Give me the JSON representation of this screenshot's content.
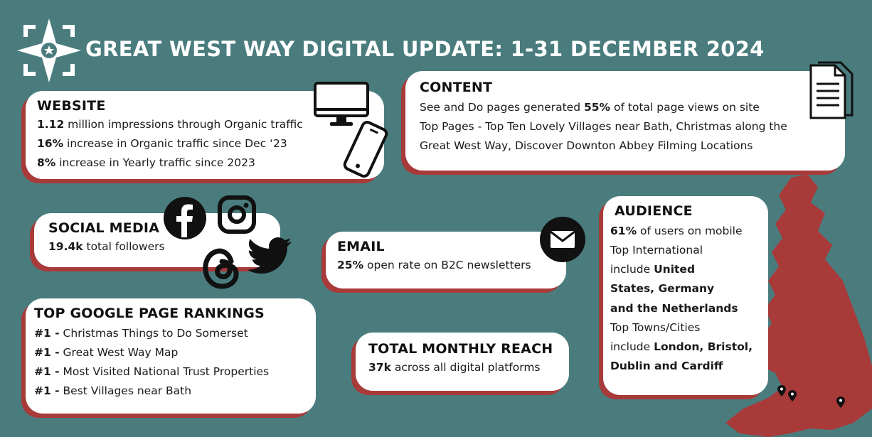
{
  "title": "GREAT WEST WAY DIGITAL UPDATE: 1-31 DECEMBER 2024",
  "colors": {
    "background": "#4a7c7e",
    "card": "#ffffff",
    "shadow": "#a83a3a",
    "map": "#a83a3a"
  },
  "website": {
    "heading": "WEBSITE",
    "l1_bold": "1.12",
    "l1_text": " million impressions through Organic traffic",
    "l2_bold": "16%",
    "l2_text": " increase in Organic traffic since Dec ‘23",
    "l3_bold": "8%",
    "l3_text": " increase in Yearly traffic since 2023"
  },
  "content": {
    "heading": "CONTENT",
    "l1_pre": "See and Do pages generated ",
    "l1_bold": "55%",
    "l1_post": " of total page views on site",
    "l2": "Top Pages - Top Ten Lovely Villages near Bath, Christmas along the",
    "l3": "Great West Way, Discover Downton Abbey Filming Locations"
  },
  "social": {
    "heading": "SOCIAL MEDIA",
    "bold": "19.4k",
    "text": " total followers"
  },
  "email": {
    "heading": "EMAIL",
    "bold": "25%",
    "text": " open rate on B2C newsletters"
  },
  "rankings": {
    "heading": "TOP GOOGLE PAGE RANKINGS",
    "items": [
      {
        "rank": "#1 -",
        "text": " Christmas Things to Do Somerset"
      },
      {
        "rank": "#1 -",
        "text": " Great West Way Map"
      },
      {
        "rank": "#1 -",
        "text": " Most Visited National Trust Properties"
      },
      {
        "rank": "#1 -",
        "text": " Best Villages near Bath"
      }
    ]
  },
  "reach": {
    "heading": "TOTAL MONTHLY REACH",
    "bold": "37k",
    "text": " across all digital platforms"
  },
  "audience": {
    "heading": "AUDIENCE",
    "l1_bold": "61%",
    "l1_text": " of users on mobile",
    "l2": "Top International",
    "l3_pre": "include ",
    "l3_bold": "United",
    "l4_bold": "States, Germany",
    "l5_bold": "and the Netherlands",
    "l6": "Top Towns/Cities",
    "l7_pre": "include ",
    "l7_bold": "London, Bristol,",
    "l8_bold": "Dublin and Cardiff"
  },
  "icons": [
    "star-logo-icon",
    "desktop-icon",
    "phone-icon",
    "document-icon",
    "facebook-icon",
    "instagram-icon",
    "threads-icon",
    "twitter-icon",
    "email-icon",
    "uk-map-icon",
    "map-pin-icon"
  ]
}
